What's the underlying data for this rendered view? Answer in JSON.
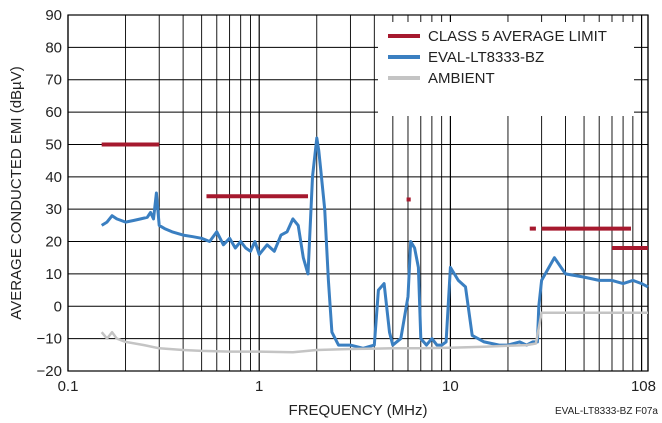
{
  "chart_data": {
    "type": "line",
    "title": "",
    "xlabel": "FREQUENCY (MHz)",
    "ylabel": "AVERAGE CONDUCTED EMI (dBµV)",
    "figure_id": "EVAL-LT8333-BZ F07a",
    "x_scale": "log",
    "xlim": [
      0.1,
      108
    ],
    "ylim": [
      -20,
      90
    ],
    "x_tick_labels": [
      "0.1",
      "1",
      "10",
      "108"
    ],
    "x_tick_values": [
      0.1,
      1,
      10,
      108
    ],
    "y_ticks": [
      -20,
      -10,
      0,
      10,
      20,
      30,
      40,
      50,
      60,
      70,
      80,
      90
    ],
    "grid": true,
    "legend_position": "top-right",
    "colors": {
      "limit": "#a6192e",
      "eval": "#3a7fc1",
      "ambient": "#c4c4c4"
    },
    "series": [
      {
        "name": "CLASS 5 AVERAGE LIMIT",
        "kind": "limit",
        "segments": [
          [
            [
              0.15,
              50
            ],
            [
              0.3,
              50
            ]
          ],
          [
            [
              0.53,
              34
            ],
            [
              1.8,
              34
            ]
          ],
          [
            [
              5.9,
              33
            ],
            [
              6.2,
              33
            ]
          ],
          [
            [
              26,
              24
            ],
            [
              28,
              24
            ]
          ],
          [
            [
              30,
              24
            ],
            [
              88,
              24
            ]
          ],
          [
            [
              70,
              18
            ],
            [
              108,
              18
            ]
          ]
        ]
      },
      {
        "name": "EVAL-LT8333-BZ",
        "kind": "eval",
        "x": [
          0.15,
          0.16,
          0.17,
          0.18,
          0.2,
          0.22,
          0.24,
          0.26,
          0.27,
          0.28,
          0.29,
          0.3,
          0.32,
          0.35,
          0.4,
          0.45,
          0.5,
          0.55,
          0.6,
          0.65,
          0.7,
          0.75,
          0.8,
          0.85,
          0.9,
          0.95,
          1.0,
          1.1,
          1.2,
          1.3,
          1.4,
          1.5,
          1.6,
          1.7,
          1.8,
          1.9,
          2.0,
          2.05,
          2.1,
          2.2,
          2.3,
          2.4,
          2.6,
          2.8,
          3.0,
          3.5,
          4.0,
          4.2,
          4.5,
          4.8,
          5.0,
          5.5,
          6.0,
          6.2,
          6.5,
          6.8,
          7.0,
          7.5,
          8.0,
          8.5,
          9.0,
          9.5,
          10.0,
          11.0,
          12.0,
          13.0,
          15.0,
          18.0,
          20.0,
          23.0,
          25.0,
          27.0,
          28.5,
          29.0,
          30.0,
          35.0,
          40.0,
          50.0,
          60.0,
          70.0,
          80.0,
          90.0,
          100.0,
          108.0
        ],
        "y": [
          25,
          26,
          28,
          27,
          26,
          26.5,
          27,
          27.5,
          29,
          27,
          35,
          25,
          24,
          23,
          22,
          21.5,
          21,
          20,
          23,
          19,
          21,
          18,
          20,
          18,
          17,
          20,
          16,
          19,
          17,
          22,
          23,
          27,
          25,
          15,
          10,
          40,
          52,
          48,
          42,
          30,
          8,
          -8,
          -12,
          -12,
          -12,
          -13,
          -12,
          5,
          7,
          -8,
          -12,
          -10,
          3,
          20,
          18,
          12,
          -10,
          -12,
          -10,
          -12,
          -12,
          -11,
          12,
          8,
          6,
          -9,
          -11,
          -12,
          -12,
          -11,
          -12,
          -11,
          -11,
          0,
          8,
          15,
          10,
          9,
          8,
          8,
          7,
          8,
          7,
          6
        ]
      },
      {
        "name": "AMBIENT",
        "kind": "ambient",
        "x": [
          0.15,
          0.16,
          0.17,
          0.18,
          0.2,
          0.25,
          0.3,
          0.4,
          0.5,
          0.7,
          1.0,
          1.5,
          2.0,
          3.0,
          5.0,
          7.0,
          10.0,
          15.0,
          20.0,
          25.0,
          28.0,
          30.0,
          35.0,
          50.0,
          70.0,
          90.0,
          108.0
        ],
        "y": [
          -8,
          -10,
          -8,
          -10,
          -11,
          -12,
          -13,
          -13.5,
          -13.8,
          -14,
          -14,
          -14.2,
          -13.5,
          -13.2,
          -13,
          -13,
          -12.8,
          -12.5,
          -12.2,
          -12,
          -11.5,
          -2,
          -2,
          -2,
          -2,
          -2,
          -2
        ]
      }
    ]
  }
}
